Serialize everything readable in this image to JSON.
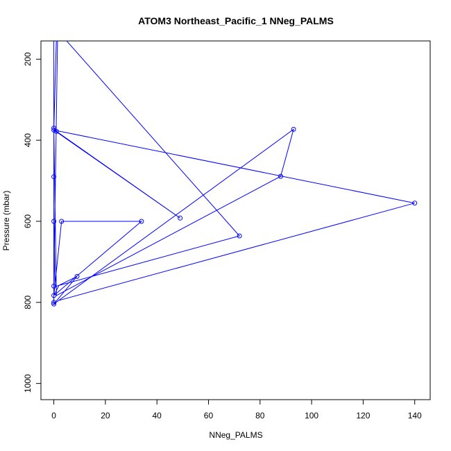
{
  "chart_data": {
    "type": "line",
    "title": "ATOM3 Northeast_Pacific_1 NNeg_PALMS",
    "xlabel": "NNeg_PALMS",
    "ylabel": "Pressure (mbar)",
    "xlim": [
      -5,
      146
    ],
    "ylim": [
      1040,
      155
    ],
    "y_reversed": true,
    "x_ticks": [
      "0",
      "20",
      "40",
      "60",
      "80",
      "100",
      "120",
      "140"
    ],
    "y_ticks": [
      "200",
      "400",
      "600",
      "800",
      "1000"
    ],
    "grid": false,
    "series_color": "#0000ff",
    "series": [
      {
        "x": [
          0,
          0,
          0,
          0,
          0.5,
          1,
          72,
          1.5,
          0,
          0,
          0,
          0,
          93,
          88,
          1,
          0,
          1,
          49,
          0,
          0,
          3,
          34,
          0,
          2,
          9,
          0,
          2,
          140,
          0,
          1
        ],
        "y": [
          370,
          110,
          490,
          600,
          760,
          760,
          636,
          130,
          760,
          783,
          800,
          804,
          373,
          489,
          783,
          370,
          378,
          592,
          375,
          783,
          600,
          600,
          783,
          758,
          736,
          804,
          795,
          555,
          375,
          145
        ],
        "points": [
          [
            0,
            370
          ],
          [
            0,
            490
          ],
          [
            0,
            600
          ],
          [
            0,
            760
          ],
          [
            72,
            636
          ],
          [
            0,
            783
          ],
          [
            0,
            800
          ],
          [
            0,
            804
          ],
          [
            93,
            373
          ],
          [
            88,
            489
          ],
          [
            1,
            378
          ],
          [
            49,
            592
          ],
          [
            0,
            375
          ],
          [
            3,
            600
          ],
          [
            34,
            600
          ],
          [
            9,
            736
          ],
          [
            140,
            555
          ]
        ]
      }
    ]
  }
}
